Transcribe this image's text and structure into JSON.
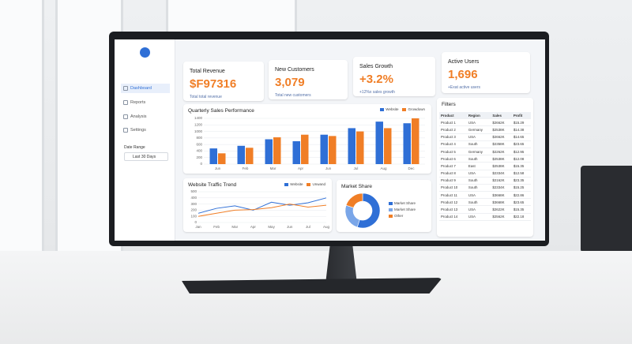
{
  "sidebar": {
    "nav": [
      "Dashboard",
      "Reports",
      "Analysis",
      "Settings"
    ],
    "date_range_label": "Date Range",
    "date_range_value": "Last 30 Days"
  },
  "kpis": [
    {
      "title": "Total Revenue",
      "value": "$F97316",
      "note": "Total total revenue"
    },
    {
      "title": "New Customers",
      "value": "3,079",
      "note": "Total new customers"
    },
    {
      "title": "Sales Growth",
      "value": "+3.2%",
      "note": "+12%x sales growth"
    },
    {
      "title": "Active Users",
      "value": "1,696",
      "note": "+Exat active users"
    }
  ],
  "chart_data": [
    {
      "type": "bar",
      "title": "Quarterly Sales Performance",
      "categories": [
        "Jun",
        "Feb",
        "Mar",
        "Apr",
        "Jun",
        "Jul",
        "Aug",
        "Dec"
      ],
      "series": [
        {
          "name": "Website",
          "color": "#2f6fd6",
          "values": [
            480,
            560,
            760,
            700,
            900,
            1100,
            1300,
            1250
          ]
        },
        {
          "name": "Growdown",
          "color": "#f07e26",
          "values": [
            330,
            500,
            820,
            900,
            860,
            1000,
            1100,
            1400
          ]
        }
      ],
      "ylim": [
        0,
        1400
      ],
      "yticks": [
        0,
        200,
        400,
        600,
        800,
        1000,
        1200,
        1400
      ],
      "grid": true
    },
    {
      "type": "line",
      "title": "Website Traffic Trend",
      "categories": [
        "Jan",
        "Feb",
        "Mar",
        "Apr",
        "May",
        "Jun",
        "Jul",
        "Aug"
      ],
      "series": [
        {
          "name": "Website",
          "color": "#2f6fd6",
          "values": [
            150,
            230,
            270,
            200,
            330,
            280,
            320,
            400
          ]
        },
        {
          "name": "Unwand",
          "color": "#f07e26",
          "values": [
            100,
            150,
            200,
            210,
            240,
            300,
            250,
            280
          ]
        }
      ],
      "ylim": [
        0,
        500
      ],
      "yticks": [
        0,
        100,
        200,
        300,
        400,
        500
      ],
      "grid": true
    },
    {
      "type": "pie",
      "title": "Market Share",
      "categories": [
        "Market Share",
        "Market Share",
        "Other"
      ],
      "values": [
        55,
        25,
        20
      ],
      "colors": [
        "#2f6fd6",
        "#7aa6e8",
        "#f07e26"
      ]
    }
  ],
  "table": {
    "title": "Filters",
    "columns": [
      "Product",
      "Region",
      "Sales",
      "Profit"
    ],
    "rows": [
      [
        "Product 1",
        "USA",
        "$2662K",
        "$15.29"
      ],
      [
        "Product 2",
        "Germany",
        "$2538K",
        "$14.38"
      ],
      [
        "Product 3",
        "USA",
        "$2662K",
        "$14.65"
      ],
      [
        "Product 4",
        "South",
        "$2358K",
        "$23.65"
      ],
      [
        "Product 5",
        "Germany",
        "$2262K",
        "$12.95"
      ],
      [
        "Product 6",
        "South",
        "$2538K",
        "$12.08"
      ],
      [
        "Product 7",
        "East",
        "$2538K",
        "$15.35"
      ],
      [
        "Product 8",
        "USA",
        "$2334K",
        "$12.58"
      ],
      [
        "Product 9",
        "South",
        "$2162K",
        "$23.35"
      ],
      [
        "Product 10",
        "South",
        "$2334K",
        "$15.25"
      ],
      [
        "Product 11",
        "USA",
        "$3668K",
        "$22.86"
      ],
      [
        "Product 12",
        "South",
        "$3668K",
        "$23.65"
      ],
      [
        "Product 13",
        "USA",
        "$2622K",
        "$15.35"
      ],
      [
        "Product 14",
        "USA",
        "$2562K",
        "$22.18"
      ]
    ]
  }
}
